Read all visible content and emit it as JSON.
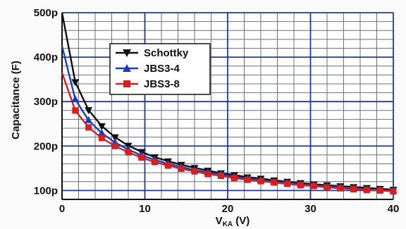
{
  "chart_data": {
    "type": "line",
    "xlabel_main": "V",
    "xlabel_sub": "KA",
    "xlabel_unit": " (V)",
    "ylabel": "Capacitance (F)",
    "xlim": [
      0,
      40
    ],
    "ylim": [
      80,
      500
    ],
    "x_ticks": [
      0,
      10,
      20,
      30,
      40
    ],
    "x_tick_labels": [
      "0",
      "10",
      "20",
      "30",
      "40"
    ],
    "y_ticks": [
      100,
      200,
      300,
      400,
      500
    ],
    "y_tick_labels": [
      "100p",
      "200p",
      "300p",
      "400p",
      "500p"
    ],
    "major_grid_x_step": 10,
    "minor_grid_x_step": 2,
    "major_grid_y_step": 100,
    "minor_grid_y_step": 20,
    "grid": true,
    "legend_position": "top-left",
    "marker_x": [
      0,
      1.6,
      3.2,
      4.8,
      6.4,
      8,
      9.6,
      11.2,
      12.8,
      14.4,
      16,
      17.6,
      19.2,
      20.8,
      22.4,
      24,
      25.6,
      27.2,
      28.8,
      30.4,
      32,
      33.6,
      35.2,
      36.8,
      38.4,
      40
    ],
    "series": [
      {
        "name": "Schottky",
        "color": "#111111",
        "marker": "triangle-down",
        "values": [
          500,
          344,
          281,
          245,
          220,
          201,
          187,
          175,
          166,
          158,
          151,
          145,
          139,
          135,
          130,
          127,
          123,
          120,
          117,
          114,
          112,
          110,
          108,
          106,
          104,
          102
        ]
      },
      {
        "name": "JBS3-4",
        "color": "#1a3fb0",
        "marker": "triangle-up",
        "values": [
          425,
          305,
          258,
          229,
          208,
          192,
          179,
          169,
          160,
          153,
          146,
          141,
          136,
          131,
          127,
          123,
          120,
          117,
          114,
          112,
          109,
          107,
          105,
          103,
          101,
          100
        ]
      },
      {
        "name": "JBS3-8",
        "color": "#d42020",
        "marker": "square",
        "values": [
          365,
          280,
          242,
          218,
          200,
          186,
          174,
          164,
          156,
          149,
          143,
          137,
          133,
          128,
          124,
          121,
          118,
          115,
          112,
          110,
          107,
          105,
          103,
          101,
          100,
          98
        ]
      }
    ]
  },
  "colors": {
    "minor_grid": "#6a6f86",
    "major_grid": "#1f3a9a",
    "axes": "#111111",
    "background": "#fafafa"
  }
}
